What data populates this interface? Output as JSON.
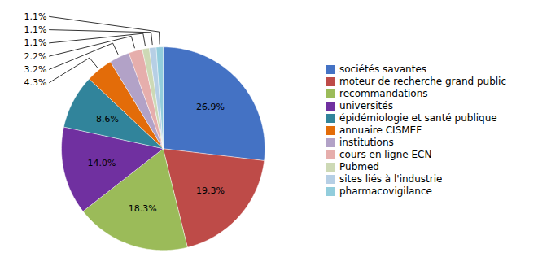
{
  "chart_data": {
    "type": "pie",
    "categories": [
      "sociétés savantes",
      "moteur de recherche grand public",
      "recommandations",
      "universités",
      "épidémiologie et santé publique",
      "annuaire CISMEF",
      "institutions",
      "cours en ligne ECN",
      "Pubmed",
      "sites liés à l'industrie",
      "pharmacovigilance"
    ],
    "values": [
      26.9,
      19.3,
      18.3,
      14.0,
      8.6,
      4.3,
      3.2,
      2.2,
      1.1,
      1.1,
      1.1
    ],
    "value_labels": [
      "26.9%",
      "19.3%",
      "18.3%",
      "14.0%",
      "8.6%",
      "4.3%",
      "3.2%",
      "2.2%",
      "1.1%",
      "1.1%",
      "1.1%"
    ],
    "colors": [
      "#4472C4",
      "#BE4B48",
      "#9BBB59",
      "#7030A0",
      "#31849B",
      "#E36C09",
      "#B2A2C7",
      "#E6AEAC",
      "#CDD9B5",
      "#B6CFE5",
      "#92CDDC"
    ],
    "data_labels": true,
    "legend": "right"
  }
}
